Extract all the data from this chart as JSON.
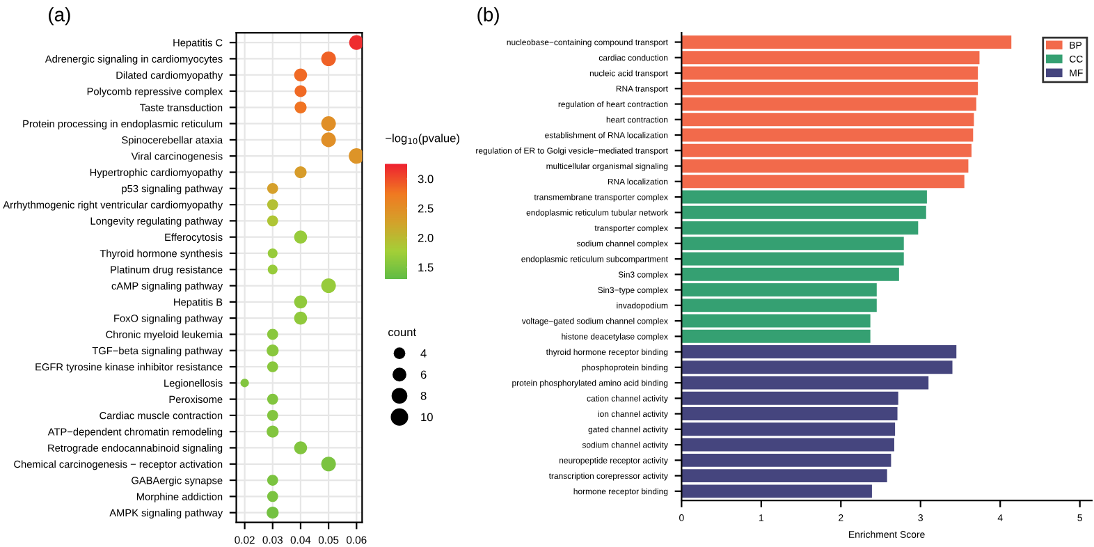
{
  "chart_data": [
    {
      "type": "bubble",
      "title": "(a)",
      "orientation": "horizontal",
      "legend_title": "count",
      "clabel": "−log$_{10}$(pvalue)",
      "categories": [
        "Hepatitis C",
        "Adrenergic signaling in cardiomyocytes",
        "Dilated cardiomyopathy",
        "Polycomb repressive complex",
        "Taste transduction",
        "Protein processing in endoplasmic reticulum",
        "Spinocerebellar ataxia",
        "Viral carcinogenesis",
        "Hypertrophic cardiomyopathy",
        "p53 signaling pathway",
        "Arrhythmogenic right ventricular cardiomyopathy",
        "Longevity regulating pathway",
        "Efferocytosis",
        "Thyroid hormone synthesis",
        "Platinum drug resistance",
        "cAMP signaling pathway",
        "Hepatitis B",
        "FoxO signaling pathway",
        "Chronic myeloid leukemia",
        "TGF−beta signaling pathway",
        "EGFR tyrosine kinase inhibitor resistance",
        "Legionellosis",
        "Peroxisome",
        "Cardiac muscle contraction",
        "ATP−dependent chromatin remodeling",
        "Retrograde endocannabinoid signaling",
        "Chemical carcinogenesis − receptor activation",
        "GABAergic synapse",
        "Morphine addiction",
        "AMPK signaling pathway"
      ],
      "values": [
        0.06,
        0.05,
        0.04,
        0.04,
        0.04,
        0.05,
        0.05,
        0.06,
        0.04,
        0.03,
        0.03,
        0.03,
        0.04,
        0.03,
        0.03,
        0.05,
        0.04,
        0.04,
        0.03,
        0.03,
        0.03,
        0.02,
        0.03,
        0.03,
        0.03,
        0.04,
        0.05,
        0.03,
        0.03,
        0.03
      ],
      "sizes": [
        9,
        9,
        7,
        6,
        6,
        9,
        9,
        10,
        6,
        5,
        5,
        5,
        7,
        4,
        4,
        9,
        7,
        7,
        5,
        6,
        5,
        3,
        5,
        5,
        6,
        7,
        9,
        5,
        5,
        6
      ],
      "cvalues": [
        3.2,
        2.9,
        2.85,
        2.85,
        2.8,
        2.5,
        2.5,
        2.45,
        2.35,
        2.3,
        1.95,
        1.9,
        1.7,
        1.7,
        1.7,
        1.7,
        1.65,
        1.65,
        1.6,
        1.6,
        1.6,
        1.55,
        1.55,
        1.55,
        1.55,
        1.55,
        1.5,
        1.5,
        1.5,
        1.45
      ],
      "size_legend": [
        4,
        6,
        8,
        10
      ],
      "xlim": [
        0.017,
        0.062
      ],
      "xticks": [
        {
          "value": 0.02,
          "label": "0.02"
        },
        {
          "value": 0.03,
          "label": "0.03"
        },
        {
          "value": 0.04,
          "label": "0.04"
        },
        {
          "value": 0.05,
          "label": "0.05"
        },
        {
          "value": 0.06,
          "label": "0.06"
        }
      ],
      "clim": [
        1.3,
        3.25
      ],
      "cticks": [
        {
          "value": 1.5,
          "label": "1.5"
        },
        {
          "value": 2.0,
          "label": "2.0"
        },
        {
          "value": 2.5,
          "label": "2.5"
        },
        {
          "value": 3.0,
          "label": "3.0"
        }
      ],
      "grid": true
    },
    {
      "type": "bar",
      "title": "(b)",
      "orientation": "horizontal",
      "xlabel": "Enrichment Score",
      "legend": "top right",
      "grid": false,
      "categories": [
        "nucleobase−containing compound transport",
        "cardiac conduction",
        "nucleic acid transport",
        "RNA transport",
        "regulation of heart contraction",
        "heart contraction",
        "establishment of RNA localization",
        "regulation of ER to Golgi vesicle−mediated transport",
        "multicellular organismal signaling",
        "RNA localization",
        "transmembrane transporter complex",
        "endoplasmic reticulum tubular network",
        "transporter complex",
        "sodium channel complex",
        "endoplasmic reticulum subcompartment",
        "Sin3 complex",
        "Sin3−type complex",
        "invadopodium",
        "voltage−gated sodium channel complex",
        "histone deacetylase complex",
        "thyroid hormone receptor binding",
        "phosphoprotein binding",
        "protein phosphorylated amino acid binding",
        "cation channel activity",
        "ion channel activity",
        "gated channel activity",
        "sodium channel activity",
        "neuropeptide receptor activity",
        "transcription corepressor activity",
        "hormone receptor binding"
      ],
      "series": [
        {
          "name": "BP",
          "color": "#f26a4b",
          "values": [
            4.14,
            3.74,
            3.72,
            3.72,
            3.7,
            3.67,
            3.66,
            3.64,
            3.6,
            3.55,
            null,
            null,
            null,
            null,
            null,
            null,
            null,
            null,
            null,
            null,
            null,
            null,
            null,
            null,
            null,
            null,
            null,
            null,
            null,
            null
          ]
        },
        {
          "name": "CC",
          "color": "#35a072",
          "values": [
            null,
            null,
            null,
            null,
            null,
            null,
            null,
            null,
            null,
            null,
            3.08,
            3.07,
            2.97,
            2.79,
            2.79,
            2.73,
            2.45,
            2.45,
            2.37,
            2.37,
            null,
            null,
            null,
            null,
            null,
            null,
            null,
            null,
            null,
            null
          ]
        },
        {
          "name": "MF",
          "color": "#45457e",
          "values": [
            null,
            null,
            null,
            null,
            null,
            null,
            null,
            null,
            null,
            null,
            null,
            null,
            null,
            null,
            null,
            null,
            null,
            null,
            null,
            null,
            3.45,
            3.4,
            3.1,
            2.72,
            2.71,
            2.68,
            2.67,
            2.63,
            2.58,
            2.39
          ]
        }
      ],
      "xlim": [
        0,
        5.15
      ],
      "xticks": [
        0,
        1,
        2,
        3,
        4,
        5
      ]
    }
  ]
}
